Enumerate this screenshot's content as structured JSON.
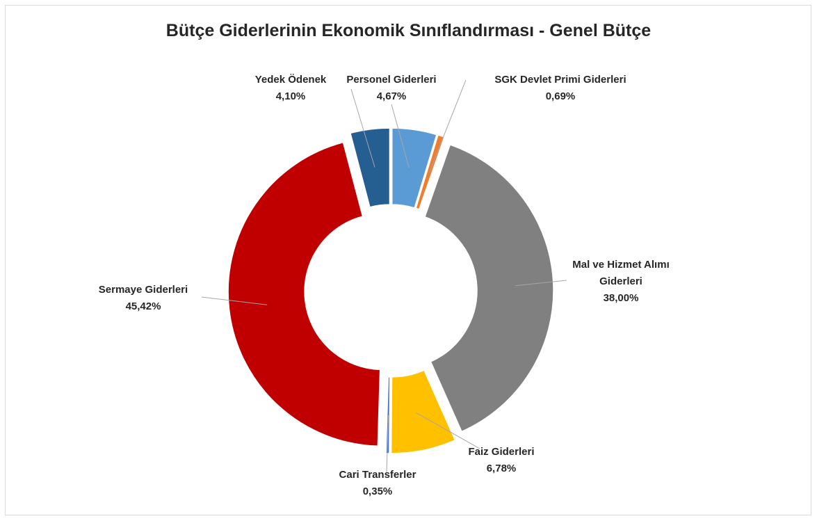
{
  "chart_data": {
    "type": "donut",
    "title": "Bütçe Giderlerinin Ekonomik Sınıflandırması - Genel Bütçe",
    "categories": [
      "Personel Giderleri",
      "SGK Devlet Primi Giderleri",
      "Mal ve Hizmet Alımı Giderleri",
      "Faiz Giderleri",
      "Cari Transferler",
      "Sermaye Giderleri",
      "Yedek Ödenek"
    ],
    "values": [
      4.67,
      0.69,
      38.0,
      6.78,
      0.35,
      45.42,
      4.1
    ],
    "value_labels": [
      "4,67%",
      "0,69%",
      "38,00%",
      "6,78%",
      "0,35%",
      "45,42%",
      "4,10%"
    ],
    "colors": [
      "#5b9bd5",
      "#ed7d31",
      "#808080",
      "#ffc000",
      "#4472c4",
      "#c00000",
      "#255e91"
    ]
  }
}
